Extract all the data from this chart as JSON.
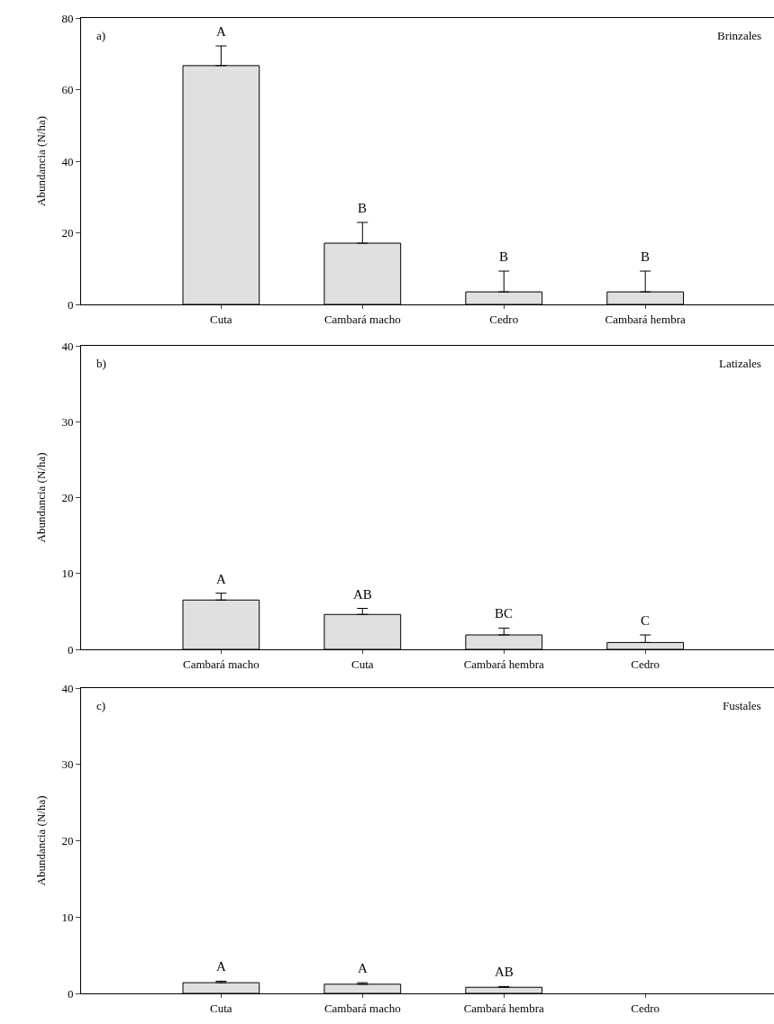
{
  "chart_data": [
    {
      "type": "bar",
      "ylabel": "Abundancia (N/ha)",
      "categories": [
        "Cuta",
        "Cambará macho",
        "Cedro",
        "Cambará hembra"
      ],
      "values": [
        66.7,
        17.1,
        3.5,
        3.5
      ],
      "errors": [
        [
          66.7,
          72.2
        ],
        [
          17.1,
          22.9
        ],
        [
          3.5,
          9.3
        ],
        [
          3.5,
          9.3
        ]
      ],
      "color": "#e0e0e0",
      "ylim": [
        0,
        80
      ],
      "yticks": [
        0,
        20,
        40,
        60,
        80
      ],
      "grid": false,
      "annotations": [
        "a)",
        "Brinzales",
        {
          "text": "A",
          "x": "Cuta",
          "y": 72.2
        },
        {
          "text": "B",
          "x": "Cambará macho",
          "y": 22.9
        },
        {
          "text": "B",
          "x": "Cedro",
          "y": 9.3
        },
        {
          "text": "B",
          "x": "Cambará hembra",
          "y": 9.3
        }
      ]
    },
    {
      "type": "bar",
      "ylabel": "Abundancia (N/ha)",
      "categories": [
        "Cambará macho",
        "Cuta",
        "Cambará hembra",
        "Cedro"
      ],
      "values": [
        6.5,
        4.6,
        1.9,
        0.9
      ],
      "errors": [
        [
          6.5,
          7.4
        ],
        [
          4.6,
          5.4
        ],
        [
          1.9,
          2.8
        ],
        [
          0.9,
          1.9
        ]
      ],
      "color": "#e0e0e0",
      "ylim": [
        0,
        40
      ],
      "yticks": [
        0,
        10,
        20,
        30,
        40
      ],
      "grid": false,
      "annotations": [
        "b)",
        "Latizales",
        {
          "text": "A",
          "x": "Cambará macho",
          "y": 7.4
        },
        {
          "text": "AB",
          "x": "Cuta",
          "y": 5.4
        },
        {
          "text": "BC",
          "x": "Cambará hembra",
          "y": 2.8
        },
        {
          "text": "C",
          "x": "Cedro",
          "y": 1.9
        }
      ]
    },
    {
      "type": "bar",
      "ylabel": "Abundancia (N/ha)",
      "categories": [
        "Cuta",
        "Cambará macho",
        "Cambará hembra",
        "Cedro"
      ],
      "values": [
        1.4,
        1.2,
        0.8,
        null
      ],
      "errors": [
        [
          1.4,
          1.6
        ],
        [
          1.2,
          1.4
        ],
        [
          0.8,
          0.9
        ],
        null
      ],
      "color": "#e0e0e0",
      "ylim": [
        0,
        40
      ],
      "yticks": [
        0,
        10,
        20,
        30,
        40
      ],
      "grid": false,
      "annotations": [
        "c)",
        "Fustales",
        {
          "text": "A",
          "x": "Cuta",
          "y": 1.6
        },
        {
          "text": "A",
          "x": "Cambará macho",
          "y": 1.4
        },
        {
          "text": "AB",
          "x": "Cambará hembra",
          "y": 0.9
        }
      ]
    }
  ]
}
